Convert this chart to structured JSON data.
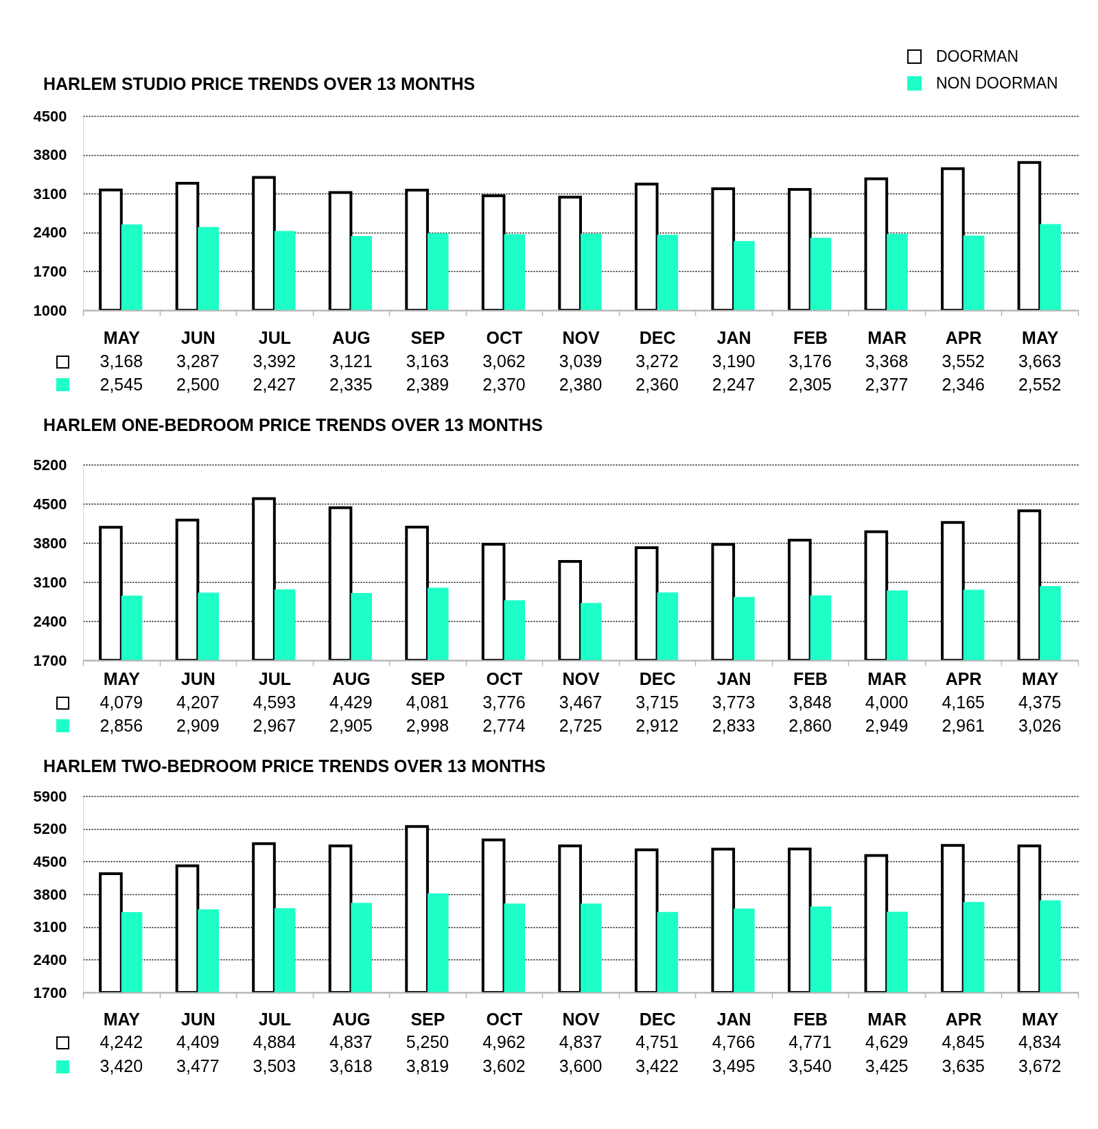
{
  "chart_data": [
    {
      "type": "bar",
      "title": "HARLEM STUDIO PRICE TRENDS OVER 13 MONTHS",
      "categories": [
        "MAY",
        "JUN",
        "JUL",
        "AUG",
        "SEP",
        "OCT",
        "NOV",
        "DEC",
        "JAN",
        "FEB",
        "MAR",
        "APR",
        "MAY"
      ],
      "series": [
        {
          "name": "DOORMAN",
          "color": "#ffffff",
          "values": [
            3168,
            3287,
            3392,
            3121,
            3163,
            3062,
            3039,
            3272,
            3190,
            3176,
            3368,
            3552,
            3663
          ],
          "value_labels": [
            "3,168",
            "3,287",
            "3,392",
            "3,121",
            "3,163",
            "3,062",
            "3,039",
            "3,272",
            "3,190",
            "3,176",
            "3,368",
            "3,552",
            "3,663"
          ]
        },
        {
          "name": "NON DOORMAN",
          "color": "#1effc8",
          "values": [
            2545,
            2500,
            2427,
            2335,
            2389,
            2370,
            2380,
            2360,
            2247,
            2305,
            2377,
            2346,
            2552
          ],
          "value_labels": [
            "2,545",
            "2,500",
            "2,427",
            "2,335",
            "2,389",
            "2,370",
            "2,380",
            "2,360",
            "2,247",
            "2,305",
            "2,377",
            "2,346",
            "2,552"
          ]
        }
      ],
      "ylim": [
        1000,
        4500
      ],
      "yticks": [
        1000,
        1700,
        2400,
        3100,
        3800,
        4500
      ],
      "grid": "y",
      "legend": "top right"
    },
    {
      "type": "bar",
      "title": "HARLEM ONE-BEDROOM PRICE TRENDS OVER 13 MONTHS",
      "categories": [
        "MAY",
        "JUN",
        "JUL",
        "AUG",
        "SEP",
        "OCT",
        "NOV",
        "DEC",
        "JAN",
        "FEB",
        "MAR",
        "APR",
        "MAY"
      ],
      "series": [
        {
          "color": "#ffffff",
          "values": [
            4079,
            4207,
            4593,
            4429,
            4081,
            3776,
            3467,
            3715,
            3773,
            3848,
            4000,
            4165,
            4375
          ],
          "value_labels": [
            "4,079",
            "4,207",
            "4,593",
            "4,429",
            "4,081",
            "3,776",
            "3,467",
            "3,715",
            "3,773",
            "3,848",
            "4,000",
            "4,165",
            "4,375"
          ]
        },
        {
          "color": "#1effc8",
          "values": [
            2856,
            2909,
            2967,
            2905,
            2998,
            2774,
            2725,
            2912,
            2833,
            2860,
            2949,
            2961,
            3026
          ],
          "value_labels": [
            "2,856",
            "2,909",
            "2,967",
            "2,905",
            "2,998",
            "2,774",
            "2,725",
            "2,912",
            "2,833",
            "2,860",
            "2,949",
            "2,961",
            "3,026"
          ]
        }
      ],
      "ylim": [
        1700,
        5200
      ],
      "yticks": [
        1700,
        2400,
        3100,
        3800,
        4500,
        5200
      ],
      "grid": "y"
    },
    {
      "type": "bar",
      "title": "HARLEM TWO-BEDROOM PRICE TRENDS OVER 13 MONTHS",
      "categories": [
        "MAY",
        "JUN",
        "JUL",
        "AUG",
        "SEP",
        "OCT",
        "NOV",
        "DEC",
        "JAN",
        "FEB",
        "MAR",
        "APR",
        "MAY"
      ],
      "series": [
        {
          "color": "#ffffff",
          "values": [
            4242,
            4409,
            4884,
            4837,
            5250,
            4962,
            4837,
            4751,
            4766,
            4771,
            4629,
            4845,
            4834
          ],
          "value_labels": [
            "4,242",
            "4,409",
            "4,884",
            "4,837",
            "5,250",
            "4,962",
            "4,837",
            "4,751",
            "4,766",
            "4,771",
            "4,629",
            "4,845",
            "4,834"
          ]
        },
        {
          "color": "#1effc8",
          "values": [
            3420,
            3477,
            3503,
            3618,
            3819,
            3602,
            3600,
            3422,
            3495,
            3540,
            3425,
            3635,
            3672
          ],
          "value_labels": [
            "3,420",
            "3,477",
            "3,503",
            "3,618",
            "3,819",
            "3,602",
            "3,600",
            "3,422",
            "3,495",
            "3,540",
            "3,425",
            "3,635",
            "3,672"
          ]
        }
      ],
      "ylim": [
        1700,
        5900
      ],
      "yticks": [
        1700,
        2400,
        3100,
        3800,
        4500,
        5200,
        5900
      ],
      "grid": "y"
    }
  ]
}
